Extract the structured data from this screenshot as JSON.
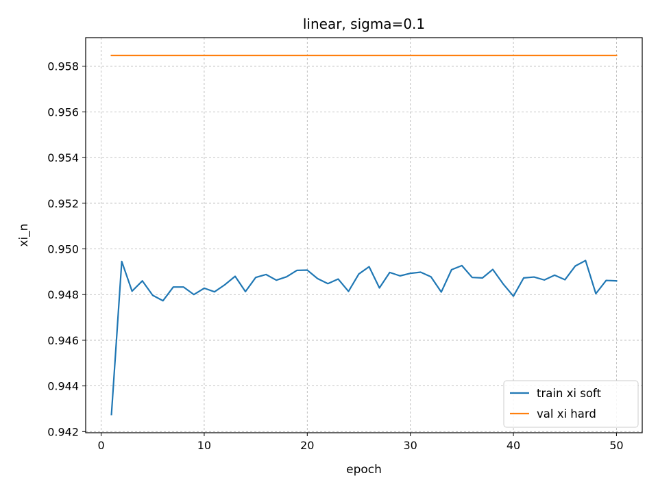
{
  "chart_data": {
    "type": "line",
    "title": "linear, sigma=0.1",
    "xlabel": "epoch",
    "ylabel": "xi_n",
    "xlim": [
      -1.5,
      52.5
    ],
    "ylim": [
      0.94195,
      0.95925
    ],
    "xticks": [
      0,
      10,
      20,
      30,
      40,
      50
    ],
    "yticks": [
      0.942,
      0.944,
      0.946,
      0.948,
      0.95,
      0.952,
      0.954,
      0.956,
      0.958
    ],
    "ytick_labels": [
      "0.942",
      "0.944",
      "0.946",
      "0.948",
      "0.950",
      "0.952",
      "0.954",
      "0.956",
      "0.958"
    ],
    "grid": true,
    "legend_position": "lower-right",
    "x": [
      1,
      2,
      3,
      4,
      5,
      6,
      7,
      8,
      9,
      10,
      11,
      12,
      13,
      14,
      15,
      16,
      17,
      18,
      19,
      20,
      21,
      22,
      23,
      24,
      25,
      26,
      27,
      28,
      29,
      30,
      31,
      32,
      33,
      34,
      35,
      36,
      37,
      38,
      39,
      40,
      41,
      42,
      43,
      44,
      45,
      46,
      47,
      48,
      49,
      50
    ],
    "series": [
      {
        "name": "train xi soft",
        "color": "#1f77b4",
        "values": [
          0.94275,
          0.94945,
          0.94815,
          0.9486,
          0.94797,
          0.94773,
          0.94833,
          0.94833,
          0.948,
          0.94828,
          0.94812,
          0.94843,
          0.9488,
          0.94813,
          0.94875,
          0.94888,
          0.94863,
          0.94878,
          0.94906,
          0.94907,
          0.9487,
          0.94848,
          0.94868,
          0.94814,
          0.9489,
          0.94922,
          0.94829,
          0.94897,
          0.94882,
          0.94893,
          0.94898,
          0.94878,
          0.94811,
          0.94909,
          0.94927,
          0.94875,
          0.94873,
          0.9491,
          0.94847,
          0.94793,
          0.94873,
          0.94877,
          0.94864,
          0.94885,
          0.94865,
          0.94925,
          0.94949,
          0.94804,
          0.94862,
          0.9486
        ]
      },
      {
        "name": "val xi hard",
        "color": "#ff7f0e",
        "values": [
          0.95847,
          0.95847,
          0.95847,
          0.95847,
          0.95847,
          0.95847,
          0.95847,
          0.95847,
          0.95847,
          0.95847,
          0.95847,
          0.95847,
          0.95847,
          0.95847,
          0.95847,
          0.95847,
          0.95847,
          0.95847,
          0.95847,
          0.95847,
          0.95847,
          0.95847,
          0.95847,
          0.95847,
          0.95847,
          0.95847,
          0.95847,
          0.95847,
          0.95847,
          0.95847,
          0.95847,
          0.95847,
          0.95847,
          0.95847,
          0.95847,
          0.95847,
          0.95847,
          0.95847,
          0.95847,
          0.95847,
          0.95847,
          0.95847,
          0.95847,
          0.95847,
          0.95847,
          0.95847,
          0.95847,
          0.95847,
          0.95847,
          0.95847
        ]
      }
    ]
  }
}
